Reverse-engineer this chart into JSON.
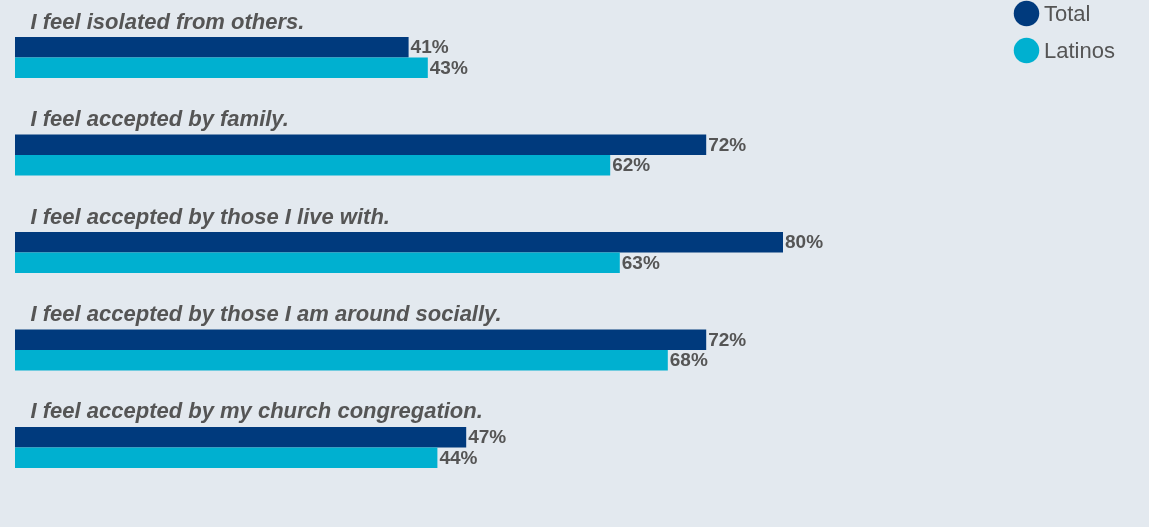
{
  "chart_data": {
    "type": "bar",
    "orientation": "horizontal",
    "categories": [
      "I feel isolated from others.",
      "I feel accepted by family.",
      "I feel accepted by those I live with.",
      "I feel accepted by those I am around socially.",
      "I feel accepted by my church congregation."
    ],
    "series": [
      {
        "name": "Total",
        "color": "#003a7d",
        "values": [
          41,
          72,
          80,
          72,
          47
        ],
        "value_labels": [
          "41%",
          "72%",
          "80%",
          "72%",
          "47%"
        ]
      },
      {
        "name": "Latinos",
        "color": "#00b0d0",
        "values": [
          43,
          62,
          63,
          68,
          44
        ],
        "value_labels": [
          "43%",
          "62%",
          "63%",
          "68%",
          "44%"
        ]
      }
    ],
    "tick_labels": false,
    "grid": false,
    "legend": "top right"
  }
}
